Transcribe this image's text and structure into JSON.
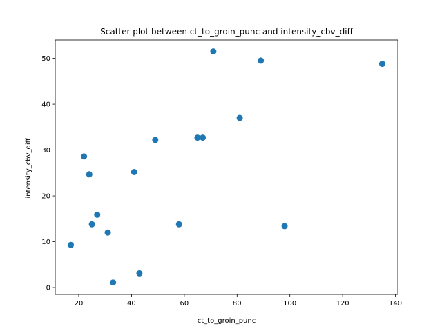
{
  "chart_data": {
    "type": "scatter",
    "title": "Scatter plot between ct_to_groin_punc and intensity_cbv_diff",
    "xlabel": "ct_to_groin_punc",
    "ylabel": "intensity_cbv_diff",
    "xlim": [
      11.1,
      140.9
    ],
    "ylim": [
      -1.5,
      54.0
    ],
    "xticks": [
      20,
      40,
      60,
      80,
      100,
      120,
      140
    ],
    "yticks": [
      0,
      10,
      20,
      30,
      40,
      50
    ],
    "grid": false,
    "color": "#1f77b4",
    "points": [
      {
        "x": 17,
        "y": 9.3
      },
      {
        "x": 22,
        "y": 28.6
      },
      {
        "x": 24,
        "y": 24.7
      },
      {
        "x": 25,
        "y": 13.8
      },
      {
        "x": 27,
        "y": 15.9
      },
      {
        "x": 31,
        "y": 12.0
      },
      {
        "x": 33,
        "y": 1.1
      },
      {
        "x": 41,
        "y": 25.2
      },
      {
        "x": 43,
        "y": 3.1
      },
      {
        "x": 49,
        "y": 32.2
      },
      {
        "x": 58,
        "y": 13.8
      },
      {
        "x": 65,
        "y": 32.7
      },
      {
        "x": 67,
        "y": 32.7
      },
      {
        "x": 71,
        "y": 51.5
      },
      {
        "x": 81,
        "y": 37.0
      },
      {
        "x": 89,
        "y": 49.5
      },
      {
        "x": 98,
        "y": 13.4
      },
      {
        "x": 135,
        "y": 48.8
      }
    ]
  }
}
